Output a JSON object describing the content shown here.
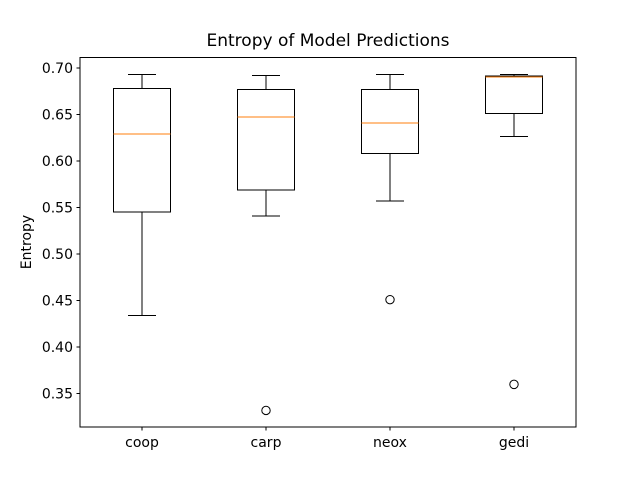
{
  "figure": {
    "background": "#ffffff"
  },
  "chart_data": {
    "type": "boxplot",
    "title": "Entropy of Model Predictions",
    "ylabel": "Entropy",
    "xlabel": "",
    "categories": [
      "coop",
      "carp",
      "neox",
      "gedi"
    ],
    "ylim": [
      0.314,
      0.711
    ],
    "xlim": [
      0.5,
      4.5
    ],
    "yticks": [
      0.35,
      0.4,
      0.45,
      0.5,
      0.55,
      0.6,
      0.65,
      0.7
    ],
    "ytick_labels": [
      "0.35",
      "0.40",
      "0.45",
      "0.50",
      "0.55",
      "0.60",
      "0.65",
      "0.70"
    ],
    "grid": false,
    "legend": false,
    "colors": {
      "median_line": "#ff7f0e",
      "box_line": "#000000",
      "spine": "#000000",
      "text": "#000000",
      "background": "#ffffff"
    },
    "series": [
      {
        "label": "coop",
        "whisker_low": 0.434,
        "q1": 0.545,
        "median": 0.629,
        "q3": 0.678,
        "whisker_high": 0.693,
        "outliers": []
      },
      {
        "label": "carp",
        "whisker_low": 0.541,
        "q1": 0.569,
        "median": 0.647,
        "q3": 0.677,
        "whisker_high": 0.692,
        "outliers": [
          0.332
        ]
      },
      {
        "label": "neox",
        "whisker_low": 0.557,
        "q1": 0.608,
        "median": 0.641,
        "q3": 0.677,
        "whisker_high": 0.693,
        "outliers": [
          0.451
        ]
      },
      {
        "label": "gedi",
        "whisker_low": 0.626,
        "q1": 0.651,
        "median": 0.69,
        "q3": 0.691,
        "whisker_high": 0.693,
        "outliers": [
          0.36
        ]
      }
    ]
  }
}
